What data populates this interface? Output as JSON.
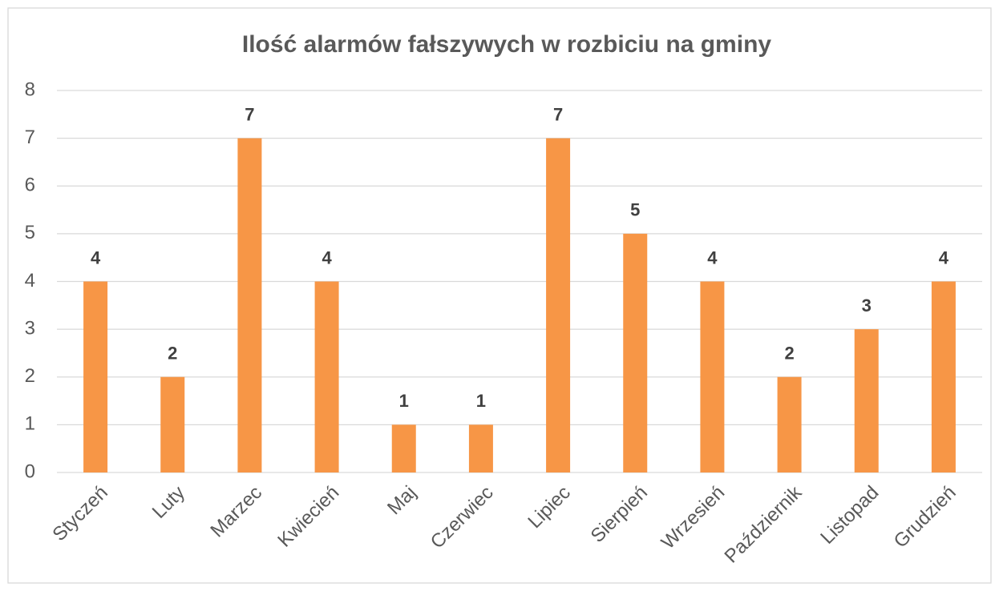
{
  "chart_data": {
    "type": "bar",
    "title": "Ilość alarmów fałszywych w rozbiciu na gminy",
    "categories": [
      "Styczeń",
      "Luty",
      "Marzec",
      "Kwiecień",
      "Maj",
      "Czerwiec",
      "Lipiec",
      "Sierpień",
      "Wrzesień",
      "Październik",
      "Listopad",
      "Grudzień"
    ],
    "values": [
      4,
      2,
      7,
      4,
      1,
      1,
      7,
      5,
      4,
      2,
      3,
      4
    ],
    "color": "#f79646",
    "ylim": [
      0,
      8
    ],
    "yticks": [
      0,
      1,
      2,
      3,
      4,
      5,
      6,
      7,
      8
    ],
    "grid": true
  }
}
